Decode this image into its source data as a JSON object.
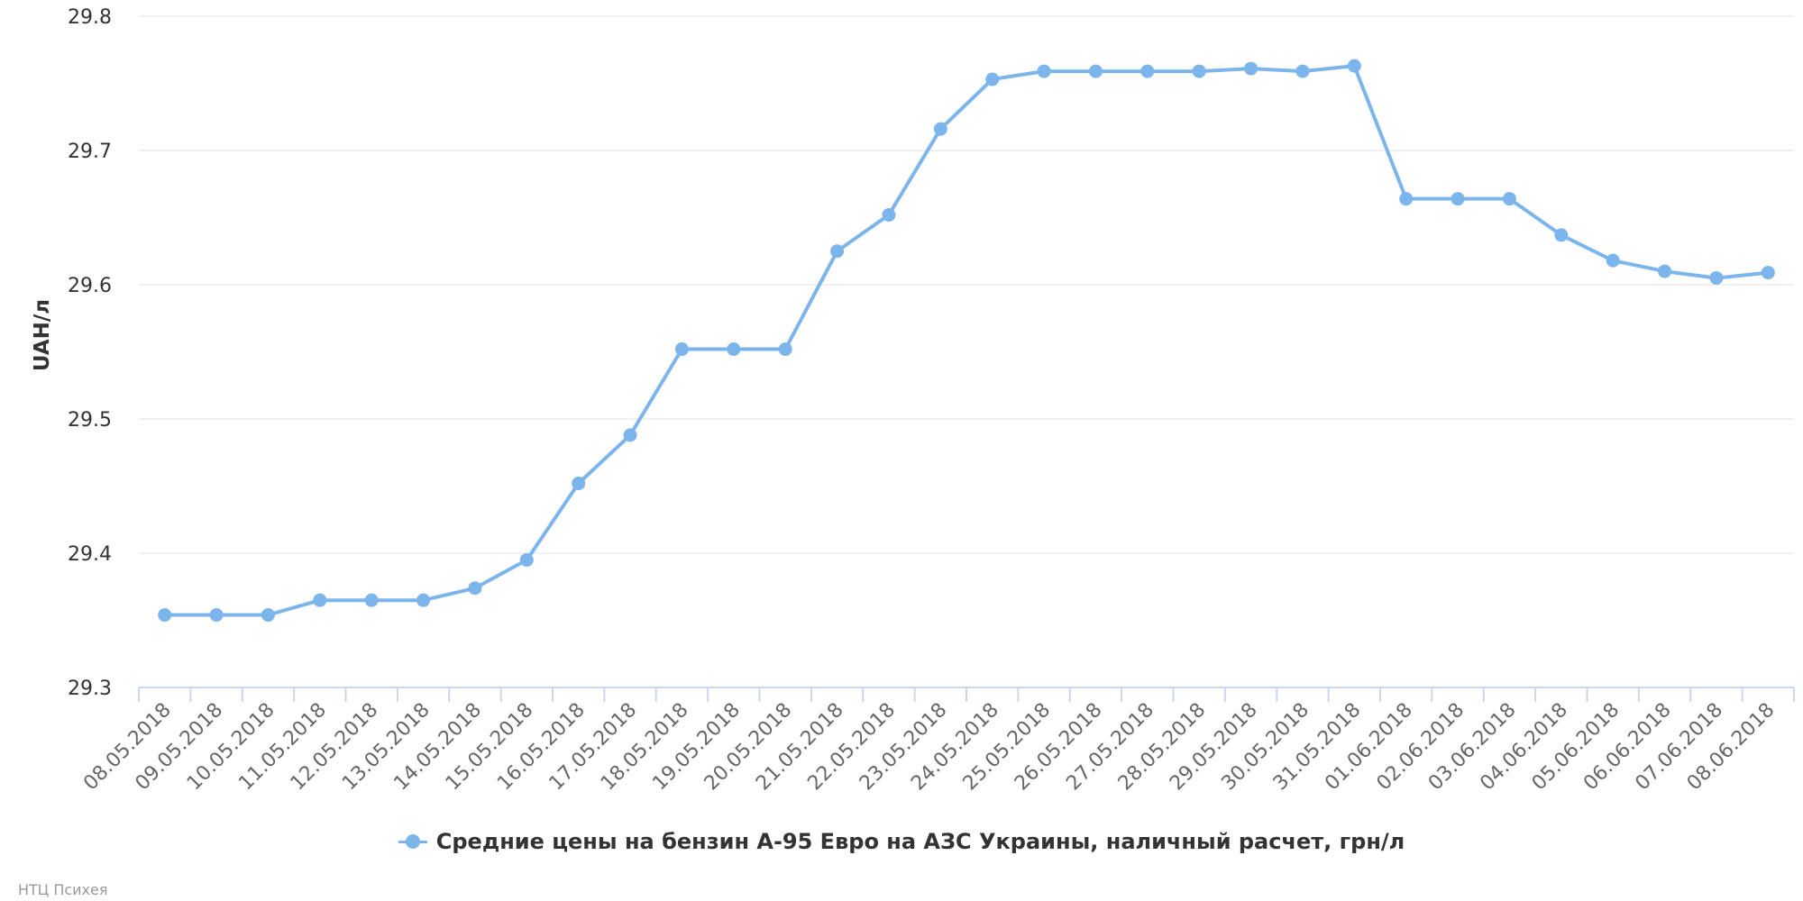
{
  "chart_data": {
    "type": "line",
    "title": "",
    "xlabel": "",
    "ylabel": "UAH/л",
    "ylim": [
      29.3,
      29.8
    ],
    "yticks": [
      "29.3",
      "29.4",
      "29.5",
      "29.6",
      "29.7",
      "29.8"
    ],
    "grid": true,
    "legend_position": "bottom-center",
    "categories": [
      "08.05.2018",
      "09.05.2018",
      "10.05.2018",
      "11.05.2018",
      "12.05.2018",
      "13.05.2018",
      "14.05.2018",
      "15.05.2018",
      "16.05.2018",
      "17.05.2018",
      "18.05.2018",
      "19.05.2018",
      "20.05.2018",
      "21.05.2018",
      "22.05.2018",
      "23.05.2018",
      "24.05.2018",
      "25.05.2018",
      "26.05.2018",
      "27.05.2018",
      "28.05.2018",
      "29.05.2018",
      "30.05.2018",
      "31.05.2018",
      "01.06.2018",
      "02.06.2018",
      "03.06.2018",
      "04.06.2018",
      "05.06.2018",
      "06.06.2018",
      "07.06.2018",
      "08.06.2018"
    ],
    "series": [
      {
        "name": "Средние цены на бензин А-95 Евро на АЗС Украины, наличный расчет, грн/л",
        "color": "#7cb5ec",
        "values": [
          29.354,
          29.354,
          29.354,
          29.365,
          29.365,
          29.365,
          29.374,
          29.395,
          29.452,
          29.488,
          29.552,
          29.552,
          29.552,
          29.625,
          29.652,
          29.716,
          29.753,
          29.759,
          29.759,
          29.759,
          29.759,
          29.761,
          29.759,
          29.763,
          29.664,
          29.664,
          29.664,
          29.637,
          29.618,
          29.61,
          29.605,
          29.609
        ]
      }
    ]
  },
  "credits": "НТЦ Психея"
}
